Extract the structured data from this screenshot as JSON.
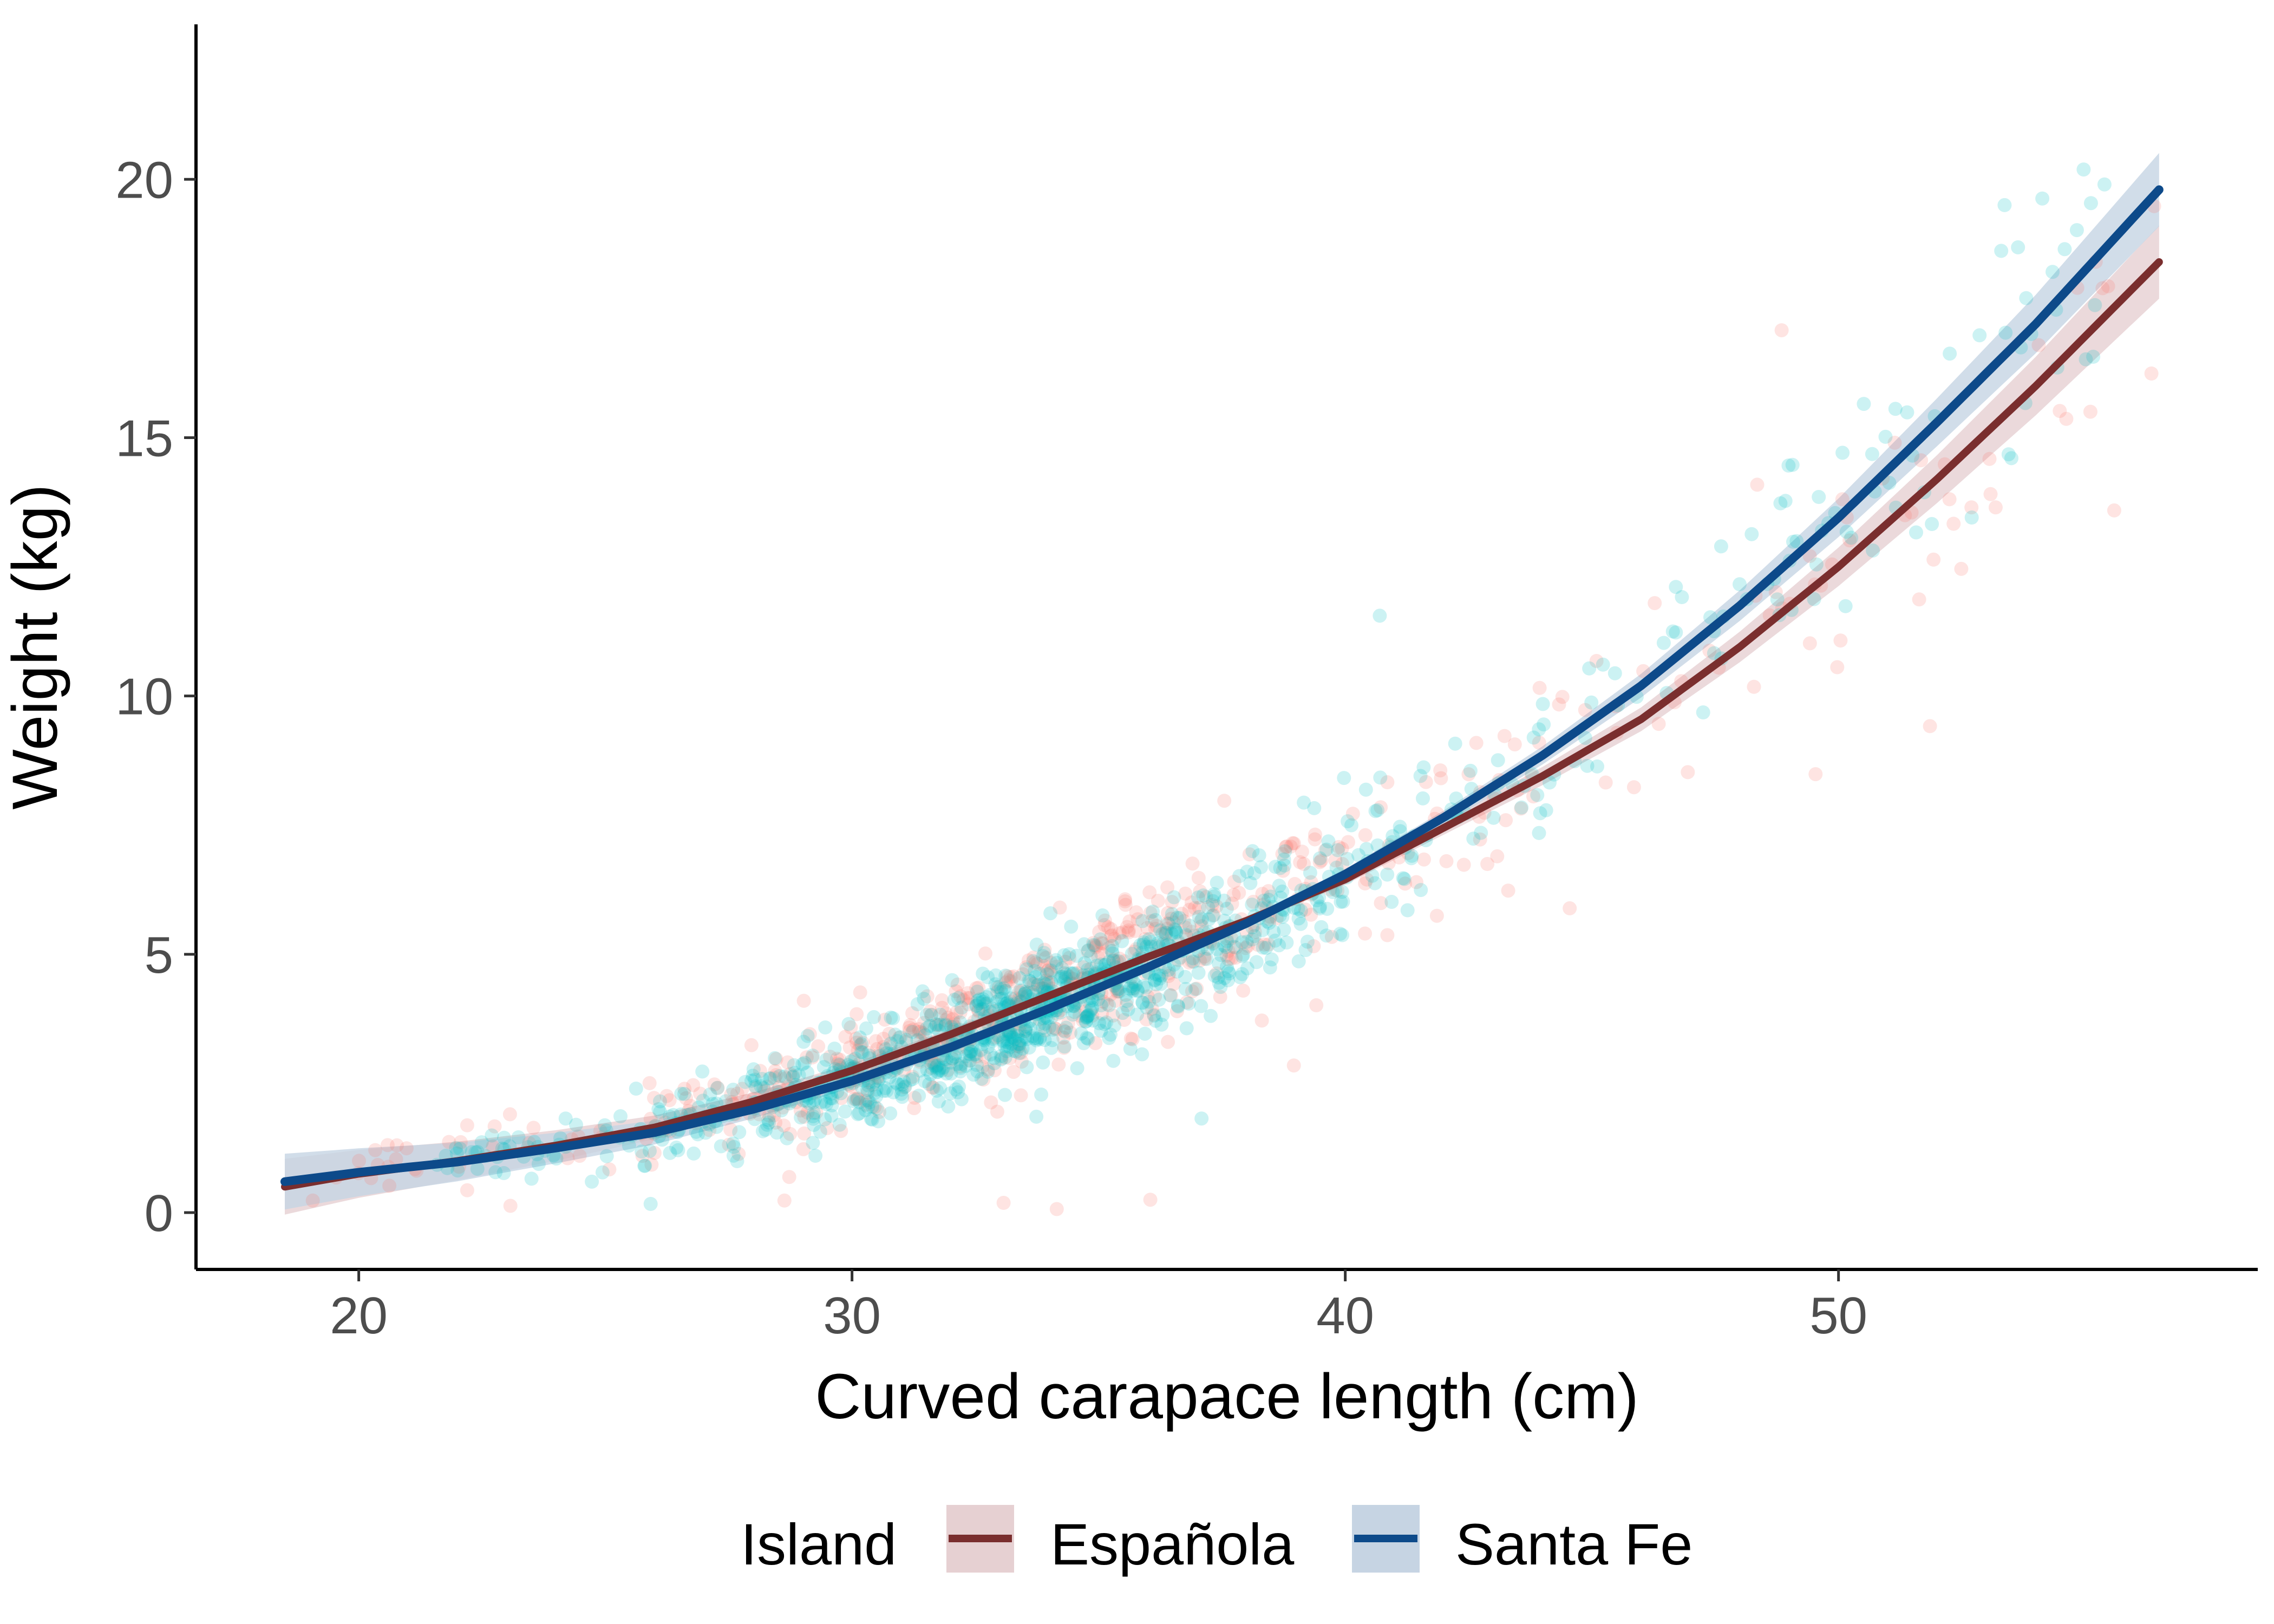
{
  "chart_data": {
    "type": "scatter",
    "title": "",
    "xlabel": "Curved carapace length (cm)",
    "ylabel": "Weight (kg)",
    "xlim": [
      16.7,
      58.5
    ],
    "ylim": [
      -1.1,
      23.0
    ],
    "x_ticks": [
      20,
      30,
      40,
      50
    ],
    "y_ticks": [
      0,
      5,
      10,
      15,
      20
    ],
    "grid": false,
    "legend": {
      "title": "Island",
      "position": "bottom",
      "items": [
        "Española",
        "Santa Fe"
      ]
    },
    "colors": {
      "espanola_points": "#f8766d",
      "santafe_points": "#00bfc4",
      "espanola_line": "#7a2e2e",
      "santafe_line": "#0d4a8a",
      "espanola_band": "#e6d0d2",
      "santafe_band": "#c6d4e3"
    },
    "series": [
      {
        "name": "Española",
        "kind": "smooth-fit",
        "x": [
          18.5,
          20,
          22,
          24,
          26,
          28,
          30,
          32,
          34,
          36,
          38,
          40,
          42,
          44,
          46,
          48,
          50,
          52,
          54,
          56.5
        ],
        "y": [
          0.5,
          0.75,
          1.0,
          1.3,
          1.65,
          2.15,
          2.75,
          3.45,
          4.2,
          4.95,
          5.65,
          6.45,
          7.45,
          8.45,
          9.55,
          10.95,
          12.5,
          14.2,
          16.0,
          18.4
        ]
      },
      {
        "name": "Santa Fe",
        "kind": "smooth-fit",
        "x": [
          18.5,
          20,
          22,
          24,
          26,
          28,
          30,
          32,
          34,
          36,
          38,
          40,
          42,
          44,
          46,
          48,
          50,
          52,
          54,
          56.5
        ],
        "y": [
          0.6,
          0.78,
          0.98,
          1.25,
          1.55,
          2.0,
          2.55,
          3.2,
          3.95,
          4.75,
          5.6,
          6.55,
          7.65,
          8.85,
          10.2,
          11.75,
          13.45,
          15.3,
          17.2,
          19.8
        ]
      }
    ],
    "scatter_note_counts": {
      "Española": 700,
      "Santa Fe": 1100
    }
  }
}
